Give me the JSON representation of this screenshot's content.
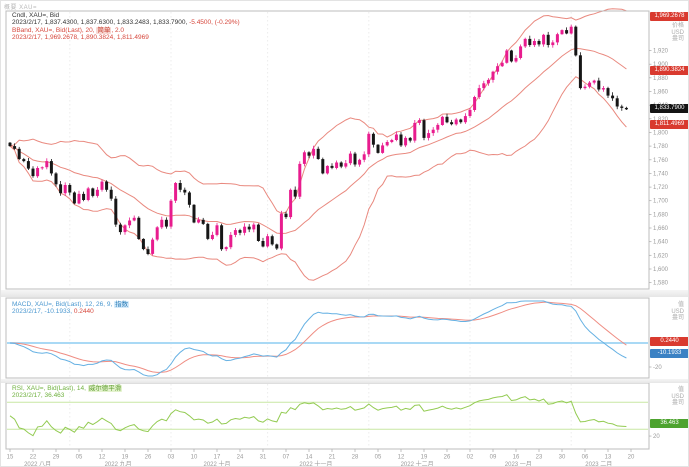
{
  "header": {
    "top_left_text": "概要  XAU="
  },
  "legend": {
    "main": {
      "line1": "Cndl, XAU=, Bid",
      "line2_black": "2023/2/17, 1,837.4300, 1,837.6300, 1,833.2483, 1,833.7900,",
      "line2_red": "-5.4500, (-0.29%)",
      "line3_pre": "BBand, XAU=, Bid(Last), 20, ",
      "line3_chip": "简单",
      "line3_post": ", 2.0",
      "line4": "2023/2/17, 1,969.2678, 1,890.3824, 1,811.4969"
    },
    "macd": {
      "line1_pre": "MACD, XAU=, Bid(Last), 12, 26, 9, ",
      "line1_chip": "指数",
      "line2_blue": "2023/2/17, -10.1933, ",
      "line2_red": "0.2440"
    },
    "rsi": {
      "line1_pre": "RSI, XAU=, Bid(Last), 14, ",
      "line1_chip": "威尔德平滑",
      "line2": "2023/2/17, 36.463"
    }
  },
  "axis": {
    "badges": {
      "bb_upper": "1,969.2678",
      "bb_mid": "1,890.3824",
      "last_price": "1,833.7900",
      "bb_lower": "1,811.4969",
      "macd_signal": "0.2440",
      "macd_value": "-10.1933",
      "rsi_value": "36.463"
    },
    "units": {
      "price": [
        "价格",
        "USD",
        "盎司"
      ],
      "macd": [
        "值",
        "USD",
        "盎司"
      ],
      "rsi": [
        "值",
        "USD",
        "盎司"
      ]
    }
  },
  "colors": {
    "candle_up": "#e81c8e",
    "candle_down": "#161616",
    "bollinger": "#e9897f",
    "macd_line": "#66b1e3",
    "macd_signal": "#ef8d83",
    "macd_zero": "#a9d9f5",
    "rsi_line": "#93cb52",
    "rsi_guides": "#c8e7a4",
    "badge_red": "#d93a2f",
    "badge_blue": "#3b82c4",
    "badge_green": "#4da32f"
  },
  "chart_data": [
    {
      "type": "candlestick",
      "title": "Cndl, XAU=, Bid",
      "interval": "daily",
      "last_bar": {
        "date": "2023/2/17",
        "open": 1837.43,
        "high": 1837.63,
        "low": 1833.2483,
        "close": 1833.79,
        "change": -5.45,
        "change_pct": -0.29
      },
      "closes": [
        1780,
        1776,
        1761,
        1758,
        1747,
        1736,
        1748,
        1749,
        1758,
        1740,
        1724,
        1711,
        1723,
        1712,
        1696,
        1710,
        1701,
        1718,
        1707,
        1716,
        1728,
        1716,
        1703,
        1665,
        1654,
        1664,
        1671,
        1675,
        1644,
        1629,
        1622,
        1643,
        1661,
        1672,
        1662,
        1700,
        1726,
        1716,
        1712,
        1694,
        1668,
        1672,
        1666,
        1644,
        1650,
        1664,
        1629,
        1632,
        1650,
        1657,
        1653,
        1662,
        1658,
        1665,
        1641,
        1633,
        1648,
        1636,
        1630,
        1681,
        1676,
        1716,
        1706,
        1754,
        1771,
        1766,
        1776,
        1761,
        1740,
        1751,
        1748,
        1756,
        1750,
        1755,
        1769,
        1753,
        1760,
        1768,
        1798,
        1782,
        1770,
        1781,
        1786,
        1789,
        1797,
        1781,
        1792,
        1788,
        1814,
        1818,
        1792,
        1799,
        1804,
        1811,
        1823,
        1815,
        1812,
        1819,
        1815,
        1824,
        1833,
        1852,
        1865,
        1872,
        1877,
        1889,
        1897,
        1902,
        1920,
        1904,
        1909,
        1926,
        1937,
        1928,
        1934,
        1929,
        1943,
        1928,
        1932,
        1944,
        1950,
        1945,
        1955,
        1913,
        1865,
        1867,
        1873,
        1876,
        1863,
        1865,
        1854,
        1850,
        1838,
        1836,
        1834
      ],
      "overlays": {
        "bollinger": {
          "period": 20,
          "ma_type": "简单",
          "stdev": 2.0,
          "upper_last": 1969.2678,
          "middle_last": 1890.3824,
          "lower_last": 1811.4969
        }
      },
      "y_axis": {
        "ticks": [
          1920,
          1900,
          1880,
          1860,
          1840,
          1820,
          1800,
          1780,
          1760,
          1740,
          1720,
          1700,
          1680,
          1660,
          1640,
          1620,
          1600,
          1580
        ],
        "min": 1578,
        "max": 1975
      },
      "x_axis": {
        "day_ticks": [
          "15",
          "22",
          "29",
          "05",
          "12",
          "19",
          "26",
          "03",
          "10",
          "17",
          "24",
          "31",
          "07",
          "14",
          "21",
          "28",
          "05",
          "12",
          "19",
          "26",
          "02",
          "09",
          "16",
          "23",
          "30",
          "06",
          "13",
          "20"
        ],
        "months": [
          {
            "label": "2022 八月",
            "ci": 6
          },
          {
            "label": "2022 九月",
            "ci": 23.5
          },
          {
            "label": "2022 十月",
            "ci": 45
          },
          {
            "label": "2022 十一月",
            "ci": 66.5
          },
          {
            "label": "2022 十二月",
            "ci": 88.5
          },
          {
            "label": "2023 一月",
            "ci": 110.5
          },
          {
            "label": "2023 二月",
            "ci": 128
          }
        ],
        "month_start_indices": [
          13,
          35,
          56,
          78,
          100,
          122
        ]
      }
    },
    {
      "type": "line",
      "title": "MACD, XAU=, Bid(Last), 12, 26, 9, 指数",
      "series": [
        "MACD",
        "Signal"
      ],
      "last": {
        "date": "2023/2/17",
        "macd": -10.1933,
        "signal": 0.244
      },
      "zero_line": 0,
      "y_tick": -20
    },
    {
      "type": "line",
      "title": "RSI, XAU=, Bid(Last), 14, 威尔德平滑",
      "last": {
        "date": "2023/2/17",
        "rsi": 36.463
      },
      "guide_bands": [
        70,
        30
      ],
      "y_tick": 20
    }
  ]
}
